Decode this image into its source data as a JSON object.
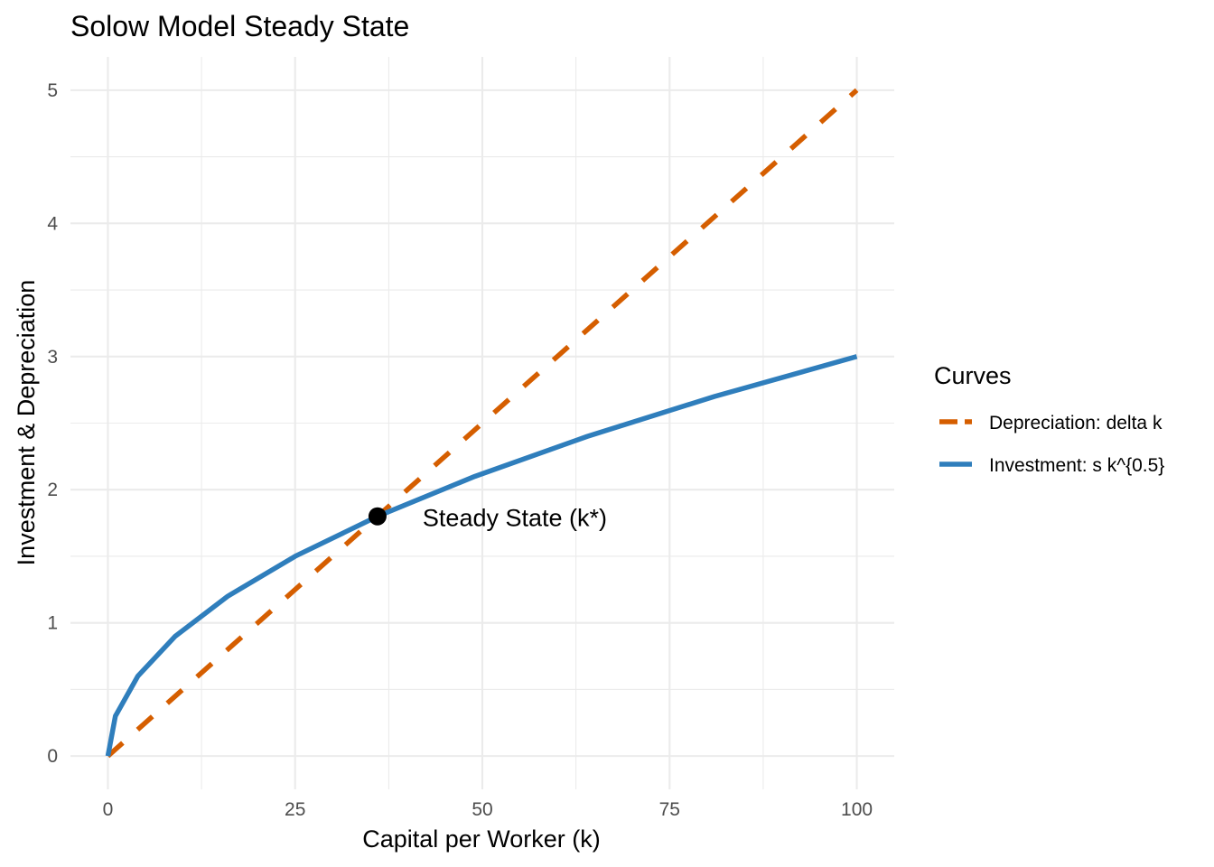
{
  "chart_data": {
    "type": "line",
    "title": "Solow Model Steady State",
    "xlabel": "Capital per Worker (k)",
    "ylabel": "Investment & Depreciation",
    "xlim": [
      -5,
      105
    ],
    "ylim": [
      -0.25,
      5.25
    ],
    "x_ticks": [
      0,
      25,
      50,
      75,
      100
    ],
    "y_ticks": [
      0,
      1,
      2,
      3,
      4,
      5
    ],
    "grid": true,
    "legend": {
      "title": "Curves",
      "position": "right"
    },
    "series": [
      {
        "name": "Depreciation: delta k",
        "style": "dashed",
        "color": "#D55E00",
        "formula": "0.05 * k",
        "x": [
          0,
          10,
          20,
          30,
          36,
          40,
          50,
          60,
          70,
          80,
          90,
          100
        ],
        "values": [
          0,
          0.5,
          1.0,
          1.5,
          1.8,
          2.0,
          2.5,
          3.0,
          3.5,
          4.0,
          4.5,
          5.0
        ]
      },
      {
        "name": "Investment: s k^{0.5}",
        "style": "solid",
        "color": "#2F7EBC",
        "formula": "0.3 * k^0.5",
        "x": [
          0,
          1,
          4,
          9,
          16,
          25,
          36,
          49,
          64,
          81,
          100
        ],
        "values": [
          0,
          0.3,
          0.6,
          0.9,
          1.2,
          1.5,
          1.8,
          2.1,
          2.4,
          2.7,
          3.0
        ]
      }
    ],
    "annotations": [
      {
        "label": "Steady State (k*)",
        "x": 36,
        "y": 1.8,
        "marker": "point",
        "color": "#000000"
      }
    ]
  }
}
